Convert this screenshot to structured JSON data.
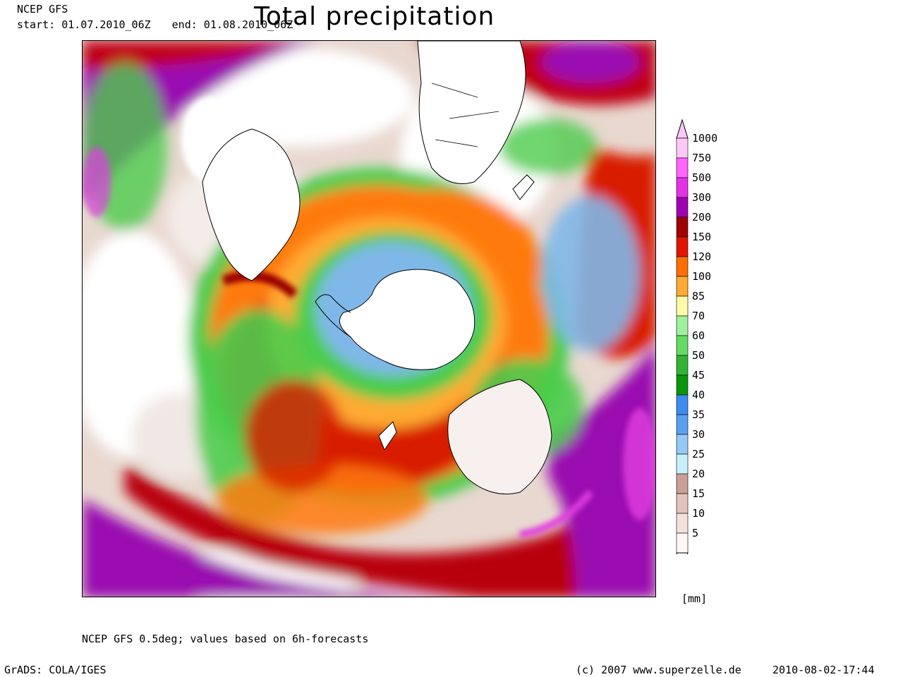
{
  "header": {
    "model_label": "NCEP GFS",
    "start_text": "start: 01.07.2010_06Z",
    "end_text": "end: 01.08.2010_06Z",
    "title": "Total precipitation"
  },
  "map": {
    "projection": "polar-stereographic-south",
    "features": [
      "antarctica",
      "south-america",
      "africa",
      "australia",
      "new-zealand"
    ],
    "precip_colors": {
      "dry": "#ffffff",
      "light": "#e8d8d0",
      "blue": "#7fb8e8",
      "green": "#4ccc4c",
      "yellow": "#f8f0a0",
      "orange": "#ff7a10",
      "red": "#d81c00",
      "darkred": "#9a0000",
      "purple": "#9a10b0",
      "magenta": "#e040e0"
    }
  },
  "legend": {
    "unit": "[mm]",
    "levels": [
      "1000",
      "750",
      "500",
      "300",
      "200",
      "150",
      "120",
      "100",
      "85",
      "70",
      "60",
      "50",
      "45",
      "40",
      "35",
      "30",
      "25",
      "20",
      "15",
      "10",
      "5"
    ],
    "colors": [
      "#ffc8f8",
      "#ff64ff",
      "#e632e6",
      "#a000b4",
      "#a00000",
      "#e11400",
      "#ff6e00",
      "#ffaa32",
      "#fffaaa",
      "#a0f0a0",
      "#64dc64",
      "#32b432",
      "#0a960a",
      "#3c8cf0",
      "#5aa0f0",
      "#96c8f5",
      "#c8f0fa",
      "#c8a096",
      "#e1c3b9",
      "#f5e1dc",
      "#fff8f5"
    ]
  },
  "footer": {
    "note": "NCEP GFS 0.5deg; values based on 6h-forecasts",
    "grads": "GrADS: COLA/IGES",
    "copyright": "(c) 2007 www.superzelle.de",
    "timestamp": "2010-08-02-17:44"
  }
}
